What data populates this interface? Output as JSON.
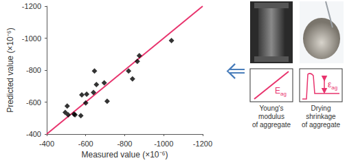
{
  "chart_data": {
    "type": "scatter",
    "xlabel": "Measured value (×10⁻⁶)",
    "ylabel": "Predicted value (×10⁻⁶)",
    "xlim": [
      -400,
      -1200
    ],
    "ylim": [
      -400,
      -1200
    ],
    "xticks": [
      -400,
      -600,
      -800,
      -1000,
      -1200
    ],
    "yticks": [
      -400,
      -600,
      -800,
      -1000,
      -1200
    ],
    "grid": false,
    "series": [
      {
        "type": "scatter",
        "color": "#000000",
        "marker": "diamond",
        "x": [
          -495,
          -505,
          -510,
          -540,
          -545,
          -575,
          -580,
          -600,
          -605,
          -640,
          -645,
          -655,
          -695,
          -710,
          -820,
          -840,
          -865,
          -875,
          -1040
        ],
        "y": [
          -535,
          -575,
          -520,
          -525,
          -520,
          -515,
          -645,
          -595,
          -650,
          -660,
          -795,
          -710,
          -720,
          -605,
          -795,
          -745,
          -855,
          -890,
          -985
        ]
      },
      {
        "type": "line",
        "color": "#e8336d",
        "line_style": "solid",
        "x": [
          -400,
          -1200
        ],
        "y": [
          -400,
          -1200
        ]
      }
    ]
  },
  "panels": [
    {
      "caption": [
        "Young's",
        "modulus",
        "of aggregate"
      ],
      "symbol": "E",
      "subscript": "ag"
    },
    {
      "caption": [
        "Drying",
        "shrinkage",
        "of aggregate"
      ],
      "symbol": "ε",
      "subscript": "ag"
    }
  ]
}
